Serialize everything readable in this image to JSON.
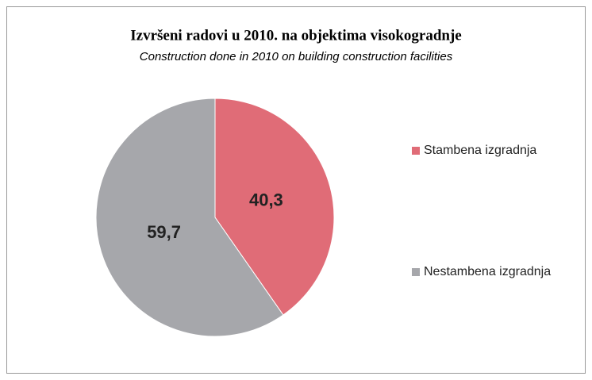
{
  "chart_data": {
    "type": "pie",
    "title": "Izvršeni radovi u 2010. na objektima visokogradnje",
    "subtitle": "Construction done in 2010 on building construction facilities",
    "categories": [
      "Stambena izgradnja",
      "Nestambena izgradnja"
    ],
    "values": [
      40.3,
      59.7
    ],
    "value_labels": [
      "40,3",
      "59,7"
    ],
    "colors": [
      "#e06c77",
      "#a6a7ab"
    ],
    "legend": "right"
  }
}
